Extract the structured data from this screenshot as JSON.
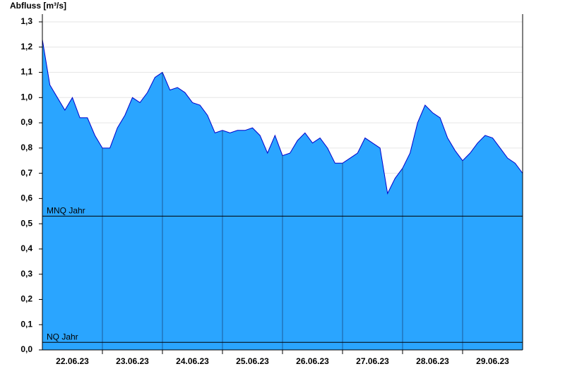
{
  "chart_data": {
    "type": "area",
    "y_label": "Abfluss [m³/s]",
    "categories": [
      null,
      null,
      null,
      null,
      "22.06.23",
      null,
      null,
      null,
      null,
      null,
      null,
      null,
      "23.06.23",
      null,
      null,
      null,
      null,
      null,
      null,
      null,
      "24.06.23",
      null,
      null,
      null,
      null,
      null,
      null,
      null,
      "25.06.23",
      null,
      null,
      null,
      null,
      null,
      null,
      null,
      "26.06.23",
      null,
      null,
      null,
      null,
      null,
      null,
      null,
      "27.06.23",
      null,
      null,
      null,
      null,
      null,
      null,
      null,
      "28.06.23",
      null,
      null,
      null,
      null,
      null,
      null,
      null,
      "29.06.23",
      null,
      null,
      null,
      null
    ],
    "series": [
      {
        "color": "#2aa5ff",
        "line_color": "#0000cc",
        "values": [
          1.23,
          1.05,
          1.0,
          0.95,
          1.0,
          0.92,
          0.92,
          0.85,
          0.8,
          0.8,
          0.88,
          0.93,
          1.0,
          0.98,
          1.02,
          1.08,
          1.1,
          1.03,
          1.04,
          1.02,
          0.98,
          0.97,
          0.93,
          0.86,
          0.87,
          0.86,
          0.87,
          0.87,
          0.88,
          0.85,
          0.78,
          0.85,
          0.77,
          0.78,
          0.83,
          0.86,
          0.82,
          0.84,
          0.8,
          0.74,
          0.74,
          0.76,
          0.78,
          0.84,
          0.82,
          0.8,
          0.62,
          0.68,
          0.72,
          0.78,
          0.9,
          0.97,
          0.94,
          0.92,
          0.84,
          0.79,
          0.75,
          0.78,
          0.82,
          0.85,
          0.84,
          0.8,
          0.76,
          0.74,
          0.7
        ]
      }
    ],
    "reference_lines": [
      {
        "label": "MNQ Jahr",
        "value": 0.53
      },
      {
        "label": "NQ Jahr",
        "value": 0.03
      }
    ],
    "ylim": [
      0,
      1.3
    ],
    "yticks": [
      {
        "value": 0,
        "label": "0,0"
      },
      {
        "value": 0.1,
        "label": "0,1"
      },
      {
        "value": 0.2,
        "label": "0,2"
      },
      {
        "value": 0.3,
        "label": "0,3"
      },
      {
        "value": 0.4,
        "label": "0,4"
      },
      {
        "value": 0.5,
        "label": "0,5"
      },
      {
        "value": 0.6,
        "label": "0,6"
      },
      {
        "value": 0.7,
        "label": "0,7"
      },
      {
        "value": 0.8,
        "label": "0,8"
      },
      {
        "value": 0.9,
        "label": "0,9"
      },
      {
        "value": 1.0,
        "label": "1,0"
      },
      {
        "value": 1.1,
        "label": "1,1"
      },
      {
        "value": 1.2,
        "label": "1,2"
      },
      {
        "value": 1.3,
        "label": "1,3"
      }
    ],
    "grid": true
  }
}
